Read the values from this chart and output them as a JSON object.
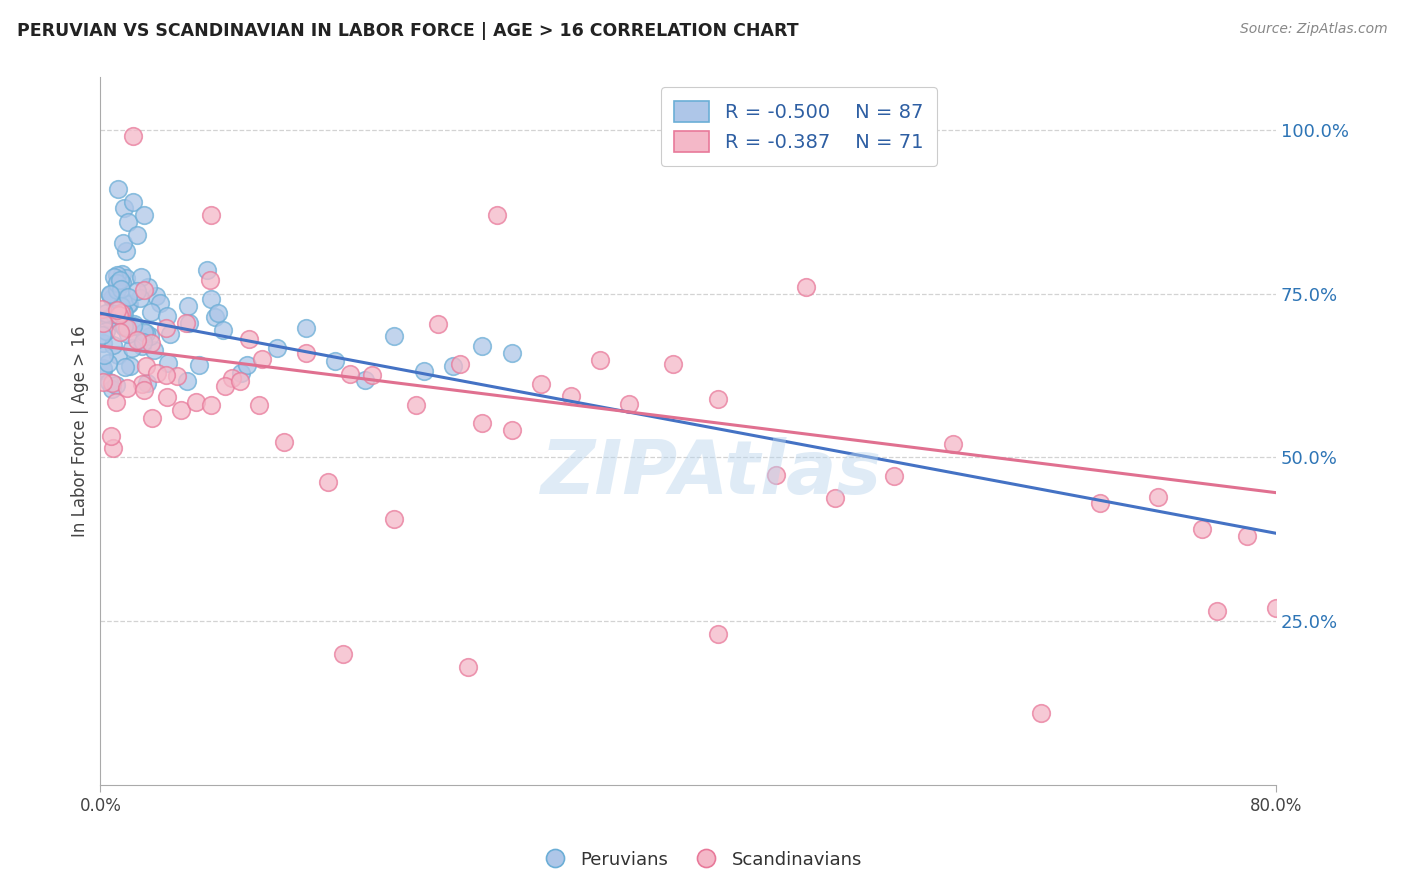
{
  "title": "PERUVIAN VS SCANDINAVIAN IN LABOR FORCE | AGE > 16 CORRELATION CHART",
  "source": "Source: ZipAtlas.com",
  "ylabel": "In Labor Force | Age > 16",
  "xlim": [
    0.0,
    0.8
  ],
  "ylim": [
    0.0,
    1.08
  ],
  "yticks": [
    0.25,
    0.5,
    0.75,
    1.0
  ],
  "ytick_labels": [
    "25.0%",
    "50.0%",
    "75.0%",
    "100.0%"
  ],
  "peruvian_R": -0.5,
  "peruvian_N": 87,
  "scandinavian_R": -0.387,
  "scandinavian_N": 71,
  "peruvian_color": "#aec6e8",
  "scandinavian_color": "#f4b8c8",
  "peruvian_edge_color": "#6baed6",
  "scandinavian_edge_color": "#e8799a",
  "peruvian_line_color": "#4472c4",
  "scandinavian_line_color": "#e07090",
  "legend_text_color": "#2e5fa3",
  "watermark": "ZIPAtlas",
  "background_color": "#ffffff",
  "grid_color": "#c8c8c8",
  "title_color": "#222222",
  "ytick_color": "#2e75b6",
  "line_intercept_peru": 0.72,
  "line_slope_peru": -0.42,
  "line_intercept_scand": 0.67,
  "line_slope_scand": -0.28
}
